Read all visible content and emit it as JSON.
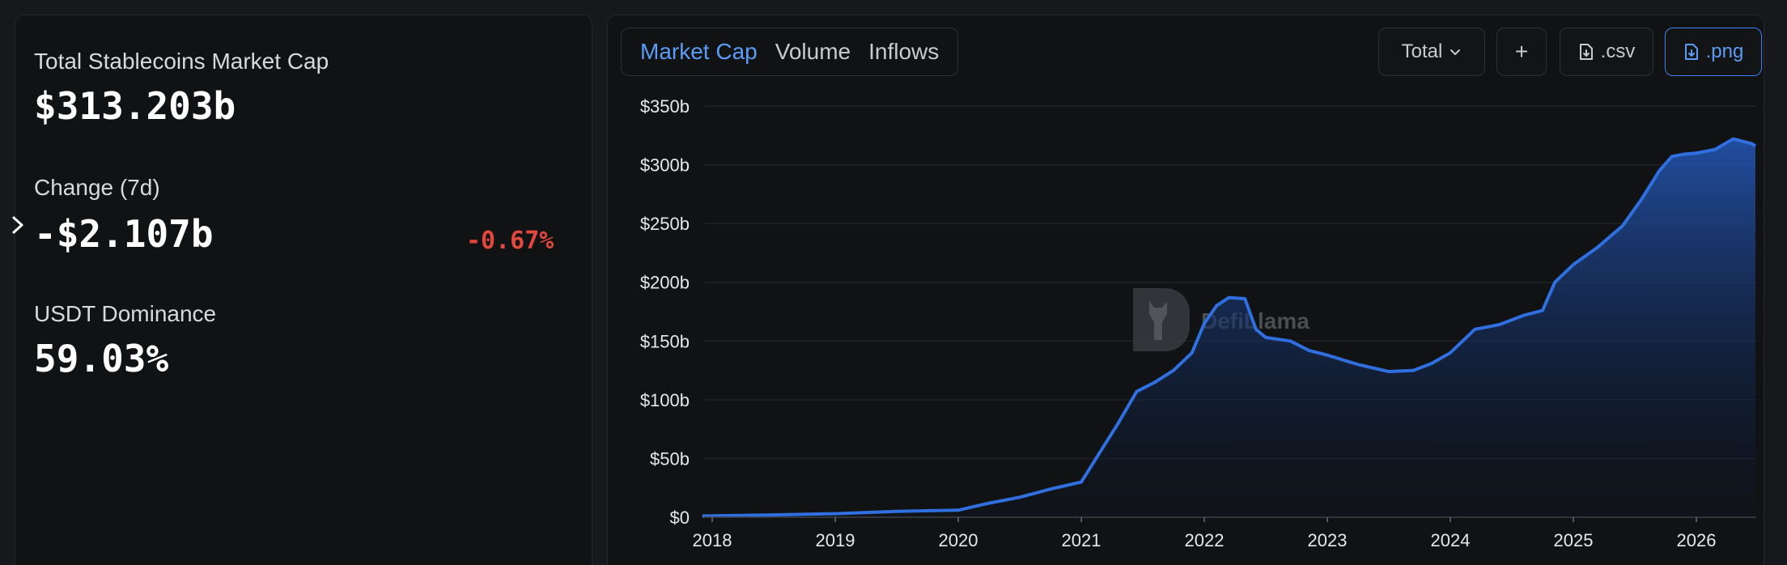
{
  "stats": {
    "market_cap_label": "Total Stablecoins Market Cap",
    "market_cap_value": "$313.203b",
    "change_label": "Change (7d)",
    "change_value": "-$2.107b",
    "change_pct": "-0.67%",
    "dominance_label": "USDT Dominance",
    "dominance_value": "59.03%"
  },
  "tabs": [
    {
      "label": "Market Cap",
      "active": true
    },
    {
      "label": "Volume",
      "active": false
    },
    {
      "label": "Inflows",
      "active": false
    }
  ],
  "toolbar": {
    "total_label": "Total",
    "plus_label": "+",
    "csv_label": ".csv",
    "png_label": ".png"
  },
  "watermark": "DefiLlama",
  "colors": {
    "line": "#2f6fe0",
    "negative": "#e0483e",
    "accent": "#5b9cf6"
  },
  "icons": {
    "expand": "chevron-right-icon",
    "dropdown": "chevron-down-icon",
    "csv": "file-download-icon",
    "png": "file-download-icon"
  },
  "chart_data": {
    "type": "area",
    "title": "",
    "xlabel": "",
    "ylabel": "",
    "ylim": [
      0,
      350
    ],
    "y_ticks": [
      "$0",
      "$50b",
      "$100b",
      "$150b",
      "$200b",
      "$250b",
      "$300b",
      "$350b"
    ],
    "x_ticks": [
      "2018",
      "2019",
      "2020",
      "2021",
      "2022",
      "2023",
      "2024",
      "2025",
      "2026"
    ],
    "grid": true,
    "series": [
      {
        "x": [
          2017.92,
          2018.5,
          2019.0,
          2019.5,
          2020.0,
          2020.25,
          2020.5,
          2020.75,
          2021.0,
          2021.15,
          2021.3,
          2021.45,
          2021.6,
          2021.75,
          2021.9,
          2022.0,
          2022.1,
          2022.2,
          2022.33,
          2022.42,
          2022.5,
          2022.7,
          2022.85,
          2023.0,
          2023.25,
          2023.5,
          2023.7,
          2023.85,
          2024.0,
          2024.2,
          2024.4,
          2024.6,
          2024.75,
          2024.85,
          2025.0,
          2025.2,
          2025.4,
          2025.55,
          2025.7,
          2025.8,
          2025.9,
          2026.0,
          2026.15,
          2026.3,
          2026.45,
          2026.48
        ],
        "y": [
          1,
          2,
          3,
          5,
          6,
          12,
          17,
          24,
          30,
          55,
          80,
          107,
          115,
          125,
          140,
          165,
          180,
          187,
          186,
          160,
          153,
          150,
          142,
          138,
          130,
          124,
          125,
          131,
          140,
          160,
          164,
          172,
          176,
          200,
          215,
          230,
          248,
          270,
          295,
          307,
          309,
          310,
          313,
          322,
          318,
          316
        ]
      }
    ]
  }
}
